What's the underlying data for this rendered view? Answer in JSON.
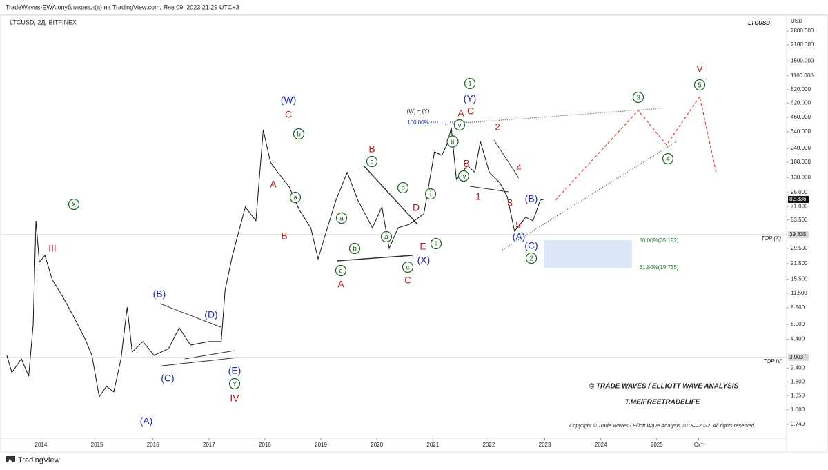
{
  "header": "TradeWaves-EWA опубликовал(а) на TradingView.com, Янв 09, 2023 21:29 UTC+3",
  "footer": "TradingView",
  "chart_data": {
    "type": "line",
    "title": "LTCUSD, 2Д, BITFINEX",
    "symbol": "LTCUSD",
    "currency": "USD",
    "log_scale": true,
    "color": "#111111",
    "x": [
      2013.39,
      2013.48,
      2013.65,
      2013.78,
      2013.86,
      2013.91,
      2013.97,
      2014.07,
      2014.2,
      2014.39,
      2014.59,
      2014.78,
      2014.91,
      2015.04,
      2015.17,
      2015.3,
      2015.43,
      2015.54,
      2015.63,
      2015.82,
      2016.02,
      2016.28,
      2016.47,
      2016.67,
      2017.0,
      2017.22,
      2017.29,
      2017.42,
      2017.65,
      2017.84,
      2017.97,
      2018.1,
      2018.23,
      2018.43,
      2018.62,
      2018.82,
      2018.95,
      2019.08,
      2019.27,
      2019.47,
      2019.66,
      2019.92,
      2020.09,
      2020.22,
      2020.38,
      2020.58,
      2020.84,
      2021.03,
      2021.16,
      2021.25,
      2021.33,
      2021.42,
      2021.62,
      2021.75,
      2021.85,
      2022.01,
      2022.2,
      2022.33,
      2022.46,
      2022.66,
      2022.79,
      2022.92,
      2022.98
    ],
    "values": [
      3.14,
      2.19,
      2.92,
      2.03,
      6.01,
      52.6,
      22.1,
      25.5,
      15.4,
      10.7,
      6.95,
      4.51,
      3.14,
      1.32,
      1.64,
      1.46,
      2.92,
      8.63,
      3.37,
      4.19,
      3.14,
      3.62,
      5.6,
      3.9,
      4.19,
      4.19,
      12.4,
      25.5,
      70.2,
      52.6,
      354,
      179,
      145,
      108,
      65.3,
      45.5,
      23.7,
      39.4,
      81.1,
      145,
      81.1,
      45.5,
      70.2,
      29.5,
      45.5,
      48.9,
      60.7,
      223,
      207,
      258,
      370,
      125,
      167,
      145,
      277,
      145,
      116,
      87.1,
      42.4,
      56.5,
      52.6,
      81.1,
      82.336
    ],
    "last_price": 82.336,
    "xlim": [
      2013.28,
      2027.32
    ],
    "ylim": [
      0.553,
      3740
    ],
    "xticks": [
      2014,
      2015,
      2016,
      2017,
      2018,
      2019,
      2020,
      2021,
      2022,
      2023,
      2024,
      2025,
      {
        "value": 2025.75,
        "label": "Окт"
      }
    ],
    "yticks": [
      {
        "value": 2800,
        "label": "2800.000"
      },
      {
        "value": 2100,
        "label": "2100.000"
      },
      {
        "value": 1500,
        "label": "1500.000"
      },
      {
        "value": 1100,
        "label": "1100.000"
      },
      {
        "value": 820,
        "label": "820.000"
      },
      {
        "value": 620,
        "label": "620.000"
      },
      {
        "value": 460,
        "label": "460.000"
      },
      {
        "value": 340,
        "label": "340.000"
      },
      {
        "value": 240,
        "label": "240.000"
      },
      {
        "value": 180,
        "label": "180.000"
      },
      {
        "value": 130,
        "label": "130.000"
      },
      {
        "value": 95,
        "label": "95.000"
      },
      {
        "value": 71,
        "label": "71.000"
      },
      {
        "value": 53.5,
        "label": "53.500"
      },
      {
        "value": 29.5,
        "label": "29.500"
      },
      {
        "value": 21.5,
        "label": "21.500"
      },
      {
        "value": 15.5,
        "label": "15.500"
      },
      {
        "value": 11.5,
        "label": "11.500"
      },
      {
        "value": 8.5,
        "label": "8.500"
      },
      {
        "value": 6,
        "label": "6.000"
      },
      {
        "value": 4.4,
        "label": "4.400"
      },
      {
        "value": 2.4,
        "label": "2.400"
      },
      {
        "value": 1.8,
        "label": "1.800"
      },
      {
        "value": 1.35,
        "label": "1.350"
      },
      {
        "value": 1,
        "label": "1.000"
      },
      {
        "value": 0.74,
        "label": "0.740"
      }
    ],
    "levels": [
      {
        "value": 39.335,
        "label": "TOP (X)"
      },
      {
        "value": 3.003,
        "label": "TOP IV"
      }
    ],
    "annotations": [
      {
        "text": "III",
        "color": "#b71c1c"
      },
      {
        "text": "X",
        "color": "#1b5e20",
        "circled": true
      },
      {
        "text": "(A)",
        "color": "#1a2ab0"
      },
      {
        "text": "(B)",
        "color": "#1a2ab0"
      },
      {
        "text": "(C)",
        "color": "#1a2ab0"
      },
      {
        "text": "(D)",
        "color": "#1a2ab0"
      },
      {
        "text": "(E)",
        "color": "#1a2ab0"
      },
      {
        "text": "Y",
        "color": "#1b5e20",
        "circled": true
      },
      {
        "text": "IV",
        "color": "#b71c1c"
      },
      {
        "text": "(W)",
        "color": "#1a2ab0"
      },
      {
        "text": "C",
        "color": "#b71c1c"
      },
      {
        "text": "b",
        "color": "#1b5e20",
        "circled": true
      },
      {
        "text": "A",
        "color": "#b71c1c"
      },
      {
        "text": "a",
        "color": "#1b5e20",
        "circled": true
      },
      {
        "text": "B",
        "color": "#b71c1c"
      },
      {
        "text": "a",
        "color": "#1b5e20",
        "circled": true
      },
      {
        "text": "b",
        "color": "#1b5e20",
        "circled": true
      },
      {
        "text": "c",
        "color": "#1b5e20",
        "circled": true
      },
      {
        "text": "A",
        "color": "#b71c1c"
      },
      {
        "text": "B",
        "color": "#b71c1c"
      },
      {
        "text": "c",
        "color": "#1b5e20",
        "circled": true
      },
      {
        "text": "a",
        "color": "#1b5e20",
        "circled": true
      },
      {
        "text": "b",
        "color": "#1b5e20",
        "circled": true
      },
      {
        "text": "D",
        "color": "#b71c1c"
      },
      {
        "text": "E",
        "color": "#b71c1c"
      },
      {
        "text": "c",
        "color": "#1b5e20",
        "circled": true
      },
      {
        "text": "C",
        "color": "#b71c1c"
      },
      {
        "text": "(X)",
        "color": "#1a2ab0"
      },
      {
        "text": "i",
        "color": "#1b5e20",
        "circled": true
      },
      {
        "text": "ii",
        "color": "#1b5e20",
        "circled": true
      },
      {
        "text": "iii",
        "color": "#1b5e20",
        "circled": true
      },
      {
        "text": "iv",
        "color": "#1b5e20",
        "circled": true
      },
      {
        "text": "v",
        "color": "#1b5e20",
        "circled": true
      },
      {
        "text": "A",
        "color": "#b71c1c"
      },
      {
        "text": "C",
        "color": "#b71c1c"
      },
      {
        "text": "(Y)",
        "color": "#1a2ab0"
      },
      {
        "text": "1",
        "color": "#1b5e20",
        "circled": true
      },
      {
        "text": "B",
        "color": "#b71c1c"
      },
      {
        "text": "1",
        "color": "#b71c1c"
      },
      {
        "text": "2",
        "color": "#b71c1c"
      },
      {
        "text": "3",
        "color": "#b71c1c"
      },
      {
        "text": "4",
        "color": "#b71c1c"
      },
      {
        "text": "5",
        "color": "#b71c1c"
      },
      {
        "text": "(B)",
        "color": "#1a2ab0"
      },
      {
        "text": "(A)",
        "color": "#1a2ab0"
      },
      {
        "text": "(C)",
        "color": "#1a2ab0"
      },
      {
        "text": "2",
        "color": "#1b5e20",
        "circled": true
      },
      {
        "text": "3",
        "color": "#1b5e20",
        "circled": true
      },
      {
        "text": "4",
        "color": "#1b5e20",
        "circled": true
      },
      {
        "text": "V",
        "color": "#b71c1c"
      },
      {
        "text": "5",
        "color": "#1b5e20",
        "circled": true
      },
      {
        "text": "(W) = (Y)",
        "color": "#222222",
        "small": true
      },
      {
        "text": "100.00%",
        "color": "#1a2ab0",
        "small": true
      },
      {
        "text": "50.00%(35.192)",
        "color": "#2e7d32",
        "small": true
      },
      {
        "text": "61.80%(19.735)",
        "color": "#2e7d32",
        "small": true
      }
    ],
    "credits": [
      "© TRADE WAVES / ELLIOTT WAVE ANALYSIS",
      "T.ME/FREETRADELIFE",
      "Copyright © Trade Waves / Elliott Wave Analysis 2018—2022. All rights reserved."
    ]
  }
}
